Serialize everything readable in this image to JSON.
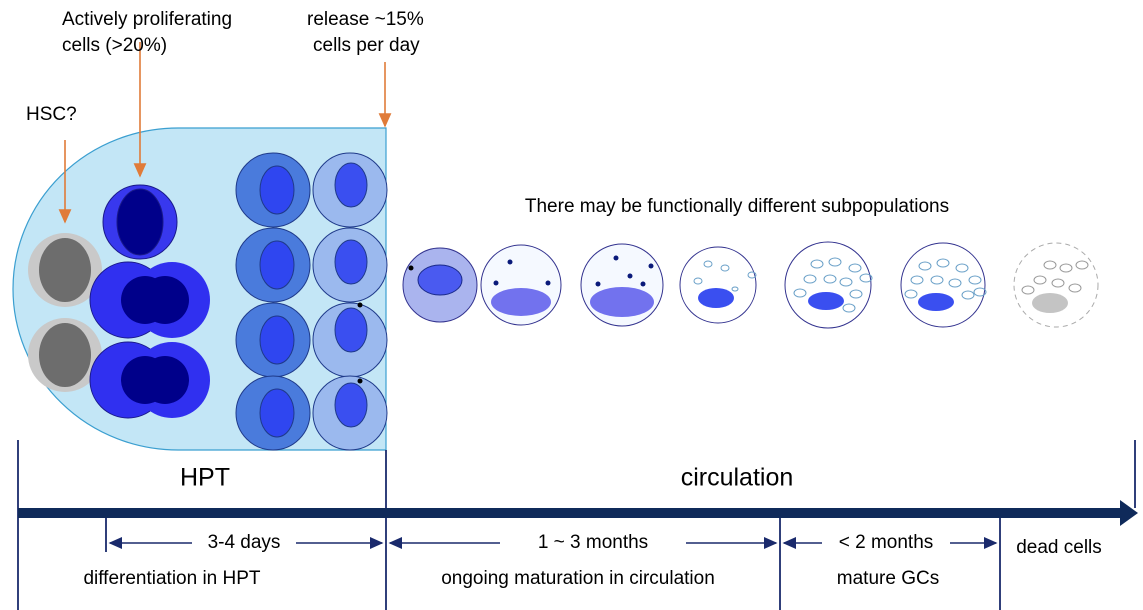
{
  "annotations": {
    "hsc": "HSC?",
    "proliferating": [
      "Actively proliferating",
      "cells (>20%)"
    ],
    "release": [
      "release ~15%",
      "cells per day"
    ],
    "subpopulations": "There may be functionally different subpopulations"
  },
  "regions": {
    "hpt": "HPT",
    "circulation": "circulation"
  },
  "timeline": {
    "durations": [
      "3-4 days",
      "1 ~ 3 months",
      "< 2 months",
      "dead cells"
    ],
    "stages": [
      "differentiation in HPT",
      "ongoing maturation in circulation",
      "mature GCs"
    ]
  }
}
